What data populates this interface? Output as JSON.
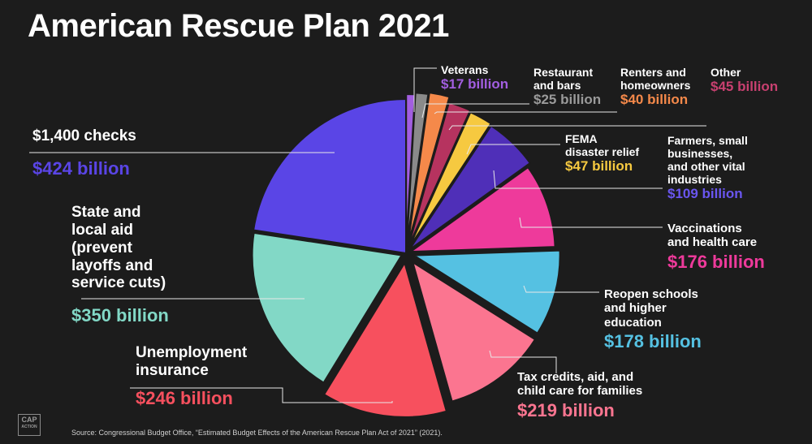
{
  "title": "American Rescue Plan 2021",
  "source": "Source: Congressional Budget Office, “Estimated Budget Effects of the American Rescue Plan Act of 2021” (2021).",
  "logo": {
    "main": "CAP",
    "sub": "ACTION"
  },
  "chart_data": {
    "type": "pie",
    "unit": "billion USD",
    "slices": [
      {
        "name": "Veterans",
        "value": 17,
        "value_label": "$17 billion",
        "color": "#a25ee0"
      },
      {
        "name": "Restaurant and bars",
        "value": 25,
        "value_label": "$25 billion",
        "color": "#8a8a8a"
      },
      {
        "name": "Renters and homeowners",
        "value": 40,
        "value_label": "$40 billion",
        "color": "#f5894a"
      },
      {
        "name": "Other",
        "value": 45,
        "value_label": "$45 billion",
        "color": "#b6335f"
      },
      {
        "name": "FEMA disaster relief",
        "value": 47,
        "value_label": "$47 billion",
        "color": "#f6c940"
      },
      {
        "name": "Farmers, small businesses, and other vital industries",
        "value": 109,
        "value_label": "$109 billion",
        "color": "#4f2fb8"
      },
      {
        "name": "Vaccinations and health care",
        "value": 176,
        "value_label": "$176 billion",
        "color": "#ee3a9b"
      },
      {
        "name": "Reopen schools and higher education",
        "value": 178,
        "value_label": "$178 billion",
        "color": "#55c1e2"
      },
      {
        "name": "Tax credits, aid, and child care for families",
        "value": 219,
        "value_label": "$219 billion",
        "color": "#fb7590"
      },
      {
        "name": "Unemployment insurance",
        "value": 246,
        "value_label": "$246 billion",
        "color": "#f7505e"
      },
      {
        "name": "State and local aid (prevent layoffs and service cuts)",
        "value": 350,
        "value_label": "$350 billion",
        "color": "#82d8c6"
      },
      {
        "name": "$1,400 checks",
        "value": 424,
        "value_label": "$424 billion",
        "color": "#5a45e6"
      }
    ]
  },
  "labels": {
    "veterans": {
      "name": "Veterans",
      "value": "$17 billion"
    },
    "restaurant": {
      "name": "Restaurant\nand bars",
      "value": "$25 billion"
    },
    "renters": {
      "name": "Renters and\nhomeowners",
      "value": "$40 billion"
    },
    "other": {
      "name": "Other",
      "value": "$45 billion"
    },
    "fema": {
      "name": "FEMA\ndisaster relief",
      "value": "$47 billion"
    },
    "farmers": {
      "name": "Farmers, small\nbusinesses,\nand other vital\nindustries",
      "value": "$109 billion"
    },
    "vaccinations": {
      "name": "Vaccinations\nand health care",
      "value": "$176 billion"
    },
    "schools": {
      "name": "Reopen schools\nand higher\neducation",
      "value": "$178 billion"
    },
    "tax": {
      "name": "Tax credits, aid, and\nchild care for families",
      "value": "$219 billion"
    },
    "unemployment": {
      "name": "Unemployment\ninsurance",
      "value": "$246 billion"
    },
    "state": {
      "name": "State and\nlocal aid\n(prevent\nlayoffs and\nservice cuts)",
      "value": "$350 billion"
    },
    "checks": {
      "name": "$1,400 checks",
      "value": "$424 billion"
    }
  }
}
